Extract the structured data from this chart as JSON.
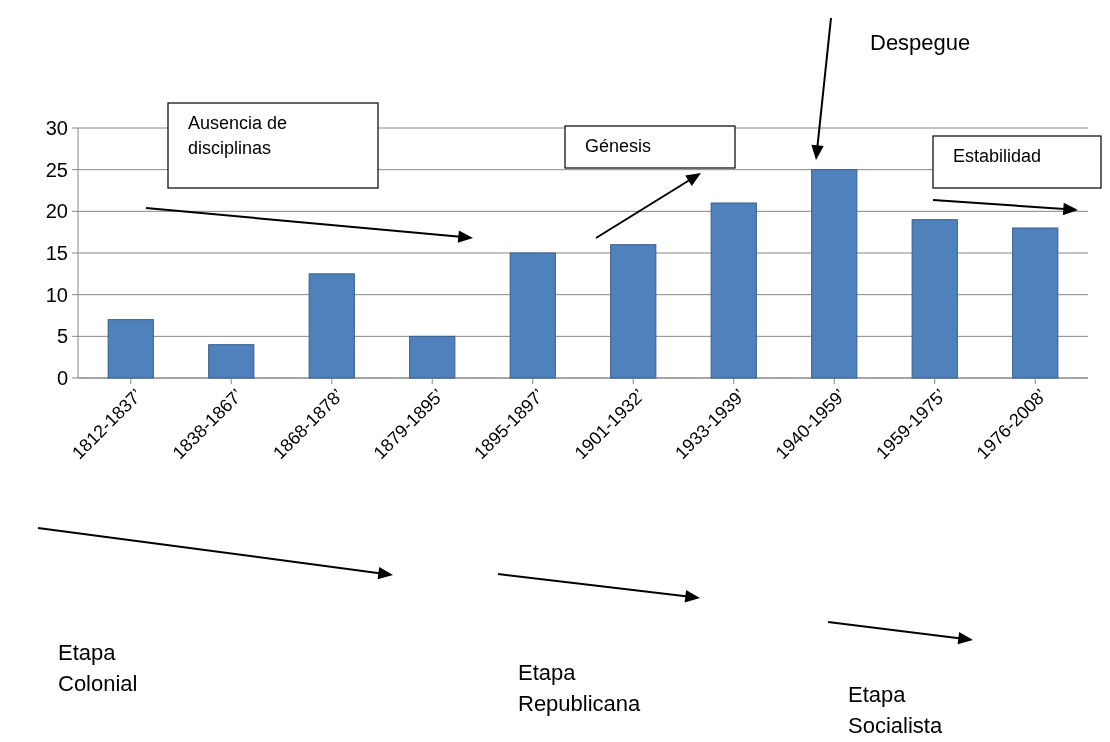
{
  "chart_data": {
    "type": "bar",
    "categories": [
      "1812-1837’",
      "1838-1867’",
      "1868-1878’",
      "1879-1895’",
      "1895-1897’",
      "1901-1932’",
      "1933-1939’",
      "1940-1959’",
      "1959-1975’",
      "1976-2008’"
    ],
    "values": [
      7,
      4,
      12.5,
      5,
      15,
      16,
      21,
      25,
      19,
      18
    ],
    "color": "#4f81bd",
    "ylim": [
      0,
      30
    ],
    "yticks": [
      0,
      5,
      10,
      15,
      20,
      25,
      30
    ],
    "grid": "y",
    "annotations": [
      "Ausencia de disciplinas",
      "Génesis",
      "Despegue",
      "Estabilidad",
      "Etapa Colonial",
      "Etapa Republicana",
      "Etapa Socialista"
    ]
  }
}
